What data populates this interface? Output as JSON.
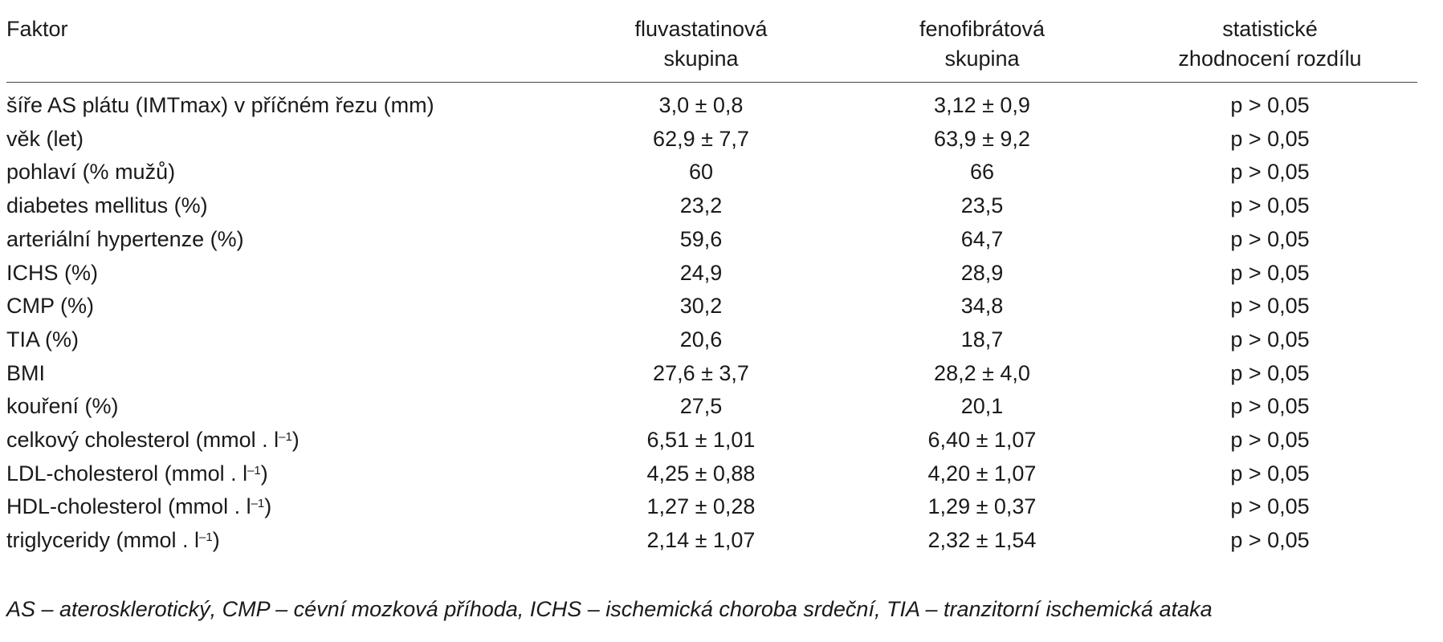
{
  "table": {
    "headers": {
      "factor": "Faktor",
      "fluva_line1": "fluvastatinová",
      "fluva_line2": "skupina",
      "feno_line1": "fenofibrátová",
      "feno_line2": "skupina",
      "stat_line1": "statistické",
      "stat_line2": "zhodnocení rozdílu"
    },
    "rows": [
      {
        "factor": "šíře AS plátu (IMTmax) v příčném řezu (mm)",
        "unit_sup": "",
        "unit_close": "",
        "fluva": "3,0 ± 0,8",
        "feno": "3,12 ± 0,9",
        "stat": "p > 0,05"
      },
      {
        "factor": "věk (let)",
        "unit_sup": "",
        "unit_close": "",
        "fluva": "62,9 ± 7,7",
        "feno": "63,9 ± 9,2",
        "stat": "p > 0,05"
      },
      {
        "factor": "pohlaví (% mužů)",
        "unit_sup": "",
        "unit_close": "",
        "fluva": "60",
        "feno": "66",
        "stat": "p > 0,05"
      },
      {
        "factor": "diabetes mellitus (%)",
        "unit_sup": "",
        "unit_close": "",
        "fluva": "23,2",
        "feno": "23,5",
        "stat": "p > 0,05"
      },
      {
        "factor": "arteriální hypertenze (%)",
        "unit_sup": "",
        "unit_close": "",
        "fluva": "59,6",
        "feno": "64,7",
        "stat": "p > 0,05"
      },
      {
        "factor": "ICHS (%)",
        "unit_sup": "",
        "unit_close": "",
        "fluva": "24,9",
        "feno": "28,9",
        "stat": "p > 0,05"
      },
      {
        "factor": "CMP (%)",
        "unit_sup": "",
        "unit_close": "",
        "fluva": "30,2",
        "feno": "34,8",
        "stat": "p > 0,05"
      },
      {
        "factor": "TIA (%)",
        "unit_sup": "",
        "unit_close": "",
        "fluva": "20,6",
        "feno": "18,7",
        "stat": "p > 0,05"
      },
      {
        "factor": "BMI",
        "unit_sup": "",
        "unit_close": "",
        "fluva": "27,6 ± 3,7",
        "feno": "28,2 ± 4,0",
        "stat": "p > 0,05"
      },
      {
        "factor": "kouření (%)",
        "unit_sup": "",
        "unit_close": "",
        "fluva": "27,5",
        "feno": "20,1",
        "stat": "p > 0,05"
      },
      {
        "factor": "celkový cholesterol (mmol . l",
        "unit_sup": "–1",
        "unit_close": ")",
        "fluva": "6,51 ± 1,01",
        "feno": "6,40 ± 1,07",
        "stat": "p > 0,05"
      },
      {
        "factor": "LDL-cholesterol (mmol . l",
        "unit_sup": "–1",
        "unit_close": ")",
        "fluva": "4,25 ± 0,88",
        "feno": "4,20 ± 1,07",
        "stat": "p > 0,05"
      },
      {
        "factor": "HDL-cholesterol (mmol . l",
        "unit_sup": "–1",
        "unit_close": ")",
        "fluva": "1,27 ± 0,28",
        "feno": "1,29 ± 0,37",
        "stat": "p > 0,05"
      },
      {
        "factor": "triglyceridy (mmol . l",
        "unit_sup": "–1",
        "unit_close": ")",
        "fluva": "2,14 ± 1,07",
        "feno": "2,32 ± 1,54",
        "stat": "p > 0,05"
      }
    ]
  },
  "footnote": "AS – aterosklerotický, CMP – cévní mozková příhoda, ICHS – ischemická choroba srdeční, TIA – tranzitorní ischemická ataka"
}
